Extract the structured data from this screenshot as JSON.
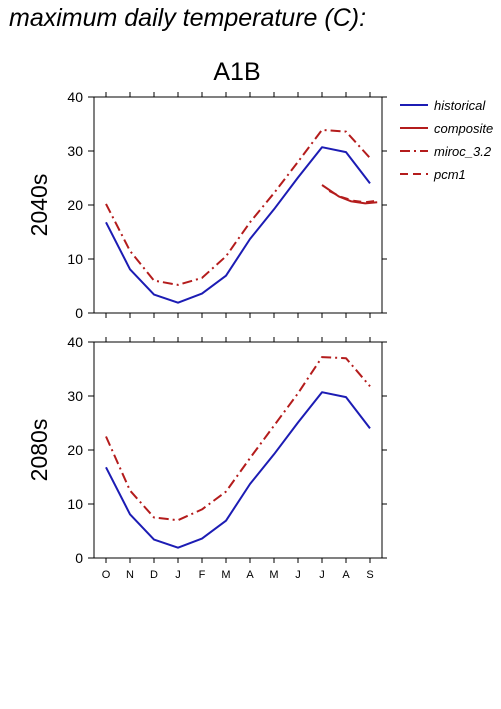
{
  "page_title": "maximum daily temperature (C):",
  "chart_data": {
    "type": "line",
    "title": "A1B",
    "categories": [
      "O",
      "N",
      "D",
      "J",
      "F",
      "M",
      "A",
      "M",
      "J",
      "J",
      "A",
      "S"
    ],
    "ylim": [
      0,
      40
    ],
    "yticks": [
      0,
      10,
      20,
      30,
      40
    ],
    "legend": {
      "placement": "top-right",
      "entries": [
        {
          "label": "historical",
          "color": "#1c1cb4",
          "style": "solid"
        },
        {
          "label": "composite",
          "color": "#b41c1c",
          "style": "solid"
        },
        {
          "label": "miroc_3.2",
          "color": "#b41c1c",
          "style": "dashdot"
        },
        {
          "label": "pcm1",
          "color": "#b41c1c",
          "style": "dashed"
        }
      ]
    },
    "panels": [
      {
        "ylabel": "2040s",
        "series": [
          {
            "name": "historical",
            "color": "#1c1cb4",
            "style": "solid",
            "values": [
              16.8,
              8.1,
              3.4,
              1.9,
              3.6,
              6.9,
              13.7,
              19.2,
              25.1,
              30.7,
              29.8,
              24.0
            ]
          },
          {
            "name": "miroc_3.2",
            "color": "#b41c1c",
            "style": "dashdot",
            "values": [
              20.2,
              11.5,
              6.0,
              5.2,
              6.5,
              10.5,
              16.8,
              22.2,
              28.0,
              33.9,
              33.6,
              28.7
            ]
          },
          {
            "name": "composite",
            "color": "#b41c1c",
            "style": "solid",
            "x": [
              9,
              9.7,
              10.2,
              10.8,
              11.3
            ],
            "values": [
              23.7,
              21.6,
              20.7,
              20.3,
              20.5
            ]
          },
          {
            "name": "pcm1",
            "color": "#b41c1c",
            "style": "dashed",
            "x": [
              9.3,
              9.8,
              10.3,
              10.8,
              11.3
            ],
            "values": [
              22.6,
              21.5,
              20.8,
              20.5,
              20.8
            ]
          }
        ]
      },
      {
        "ylabel": "2080s",
        "series": [
          {
            "name": "historical",
            "color": "#1c1cb4",
            "style": "solid",
            "values": [
              16.8,
              8.1,
              3.4,
              1.9,
              3.6,
              6.9,
              13.7,
              19.2,
              25.1,
              30.7,
              29.8,
              24.0
            ]
          },
          {
            "name": "miroc_3.2",
            "color": "#b41c1c",
            "style": "dashdot",
            "values": [
              22.5,
              12.5,
              7.5,
              7.0,
              9.0,
              12.3,
              18.5,
              24.5,
              30.5,
              37.2,
              37.0,
              31.8
            ]
          }
        ]
      }
    ]
  }
}
